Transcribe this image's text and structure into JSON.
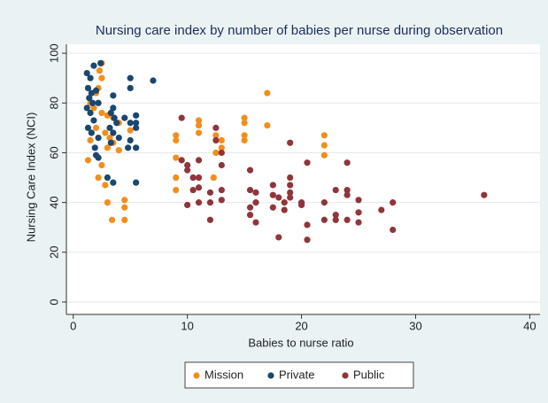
{
  "chart_data": {
    "type": "scatter",
    "title": "Nursing care index by number of babies per nurse during observation",
    "x_label": "Babies to nurse ratio",
    "y_label": "Nursing Care Index (NCI)",
    "xlim": [
      -0.6,
      40.9
    ],
    "xticks": [
      0,
      10,
      20,
      30,
      40
    ],
    "ylim": [
      -5,
      103.6
    ],
    "yticks": [
      0,
      20,
      40,
      60,
      80,
      100
    ],
    "grid": true,
    "legend": "bottom",
    "series": [
      {
        "name": "Mission",
        "color": "#f28e1c",
        "x": [
          2.5,
          2.3,
          2.5,
          2.2,
          2,
          1.5,
          1.8,
          2.5,
          3,
          3.5,
          4,
          2,
          2.8,
          3.2,
          3.5,
          3,
          4,
          1.5,
          1.3,
          2.5,
          2.2,
          2.8,
          3,
          3.4,
          4.5,
          4.5,
          4.5,
          5,
          9,
          9,
          9,
          9,
          9,
          11,
          11,
          11,
          12.5,
          13,
          13,
          12.5,
          12.3,
          15,
          15,
          15,
          15,
          17,
          17,
          22,
          22,
          22
        ],
        "values": [
          96,
          93,
          90,
          86,
          84,
          80,
          78,
          76,
          75,
          74,
          72,
          70,
          68,
          66,
          64,
          62,
          61,
          65,
          57,
          55,
          50,
          47,
          40,
          33,
          41,
          38,
          33,
          69,
          67,
          65,
          58,
          50,
          45,
          73,
          71,
          68,
          67,
          65,
          62,
          60,
          50,
          74,
          72,
          67,
          65,
          84,
          71,
          67,
          63,
          59
        ]
      },
      {
        "name": "Private",
        "color": "#1a476f",
        "x": [
          1.2,
          1.5,
          1.8,
          2.4,
          1.3,
          1.6,
          2,
          1.4,
          1.7,
          2.2,
          1.2,
          1.5,
          1.8,
          1.3,
          1.6,
          2.2,
          1.9,
          2,
          2.2,
          3.5,
          3.5,
          3.3,
          3.6,
          3.8,
          3.2,
          3.5,
          4,
          3.3,
          3,
          3.5,
          5,
          5,
          4.5,
          5,
          5.5,
          5.5,
          5.5,
          5,
          4.8,
          5.5,
          5.5,
          7
        ],
        "values": [
          92,
          90,
          95,
          96,
          86,
          84,
          85,
          82,
          80,
          80,
          78,
          76,
          73,
          70,
          68,
          66,
          62,
          59,
          58,
          83,
          78,
          76,
          74,
          72,
          70,
          68,
          66,
          64,
          50,
          48,
          90,
          86,
          74,
          72,
          75,
          72,
          70,
          65,
          62,
          62,
          48,
          89
        ]
      },
      {
        "name": "Public",
        "color": "#90353b",
        "x": [
          9.5,
          9.5,
          10,
          10,
          11,
          10.5,
          11,
          10.5,
          11,
          10,
          11,
          12,
          12,
          12,
          12.5,
          12.5,
          13,
          13,
          13,
          13,
          15.5,
          15.5,
          15.5,
          15.5,
          16,
          16,
          16,
          17.5,
          17.5,
          17.5,
          18,
          18,
          18.5,
          18.5,
          19,
          19,
          19,
          19,
          19,
          20,
          20,
          20.5,
          20.5,
          20.5,
          22,
          22,
          23,
          23,
          23,
          24,
          24,
          24,
          24,
          25,
          25,
          25,
          27,
          28,
          28,
          36
        ],
        "values": [
          74,
          57,
          55,
          53,
          57,
          50,
          50,
          45,
          46,
          39,
          40,
          44,
          40,
          33,
          70,
          65,
          60,
          55,
          45,
          41,
          53,
          45,
          38,
          35,
          40,
          44,
          32,
          47,
          43,
          38,
          42,
          26,
          40,
          37,
          64,
          50,
          47,
          44,
          42,
          40,
          39,
          56,
          31,
          25,
          40,
          33,
          45,
          35,
          33,
          56,
          45,
          43,
          33,
          41,
          36,
          32,
          37,
          40,
          29,
          43
        ]
      }
    ]
  }
}
